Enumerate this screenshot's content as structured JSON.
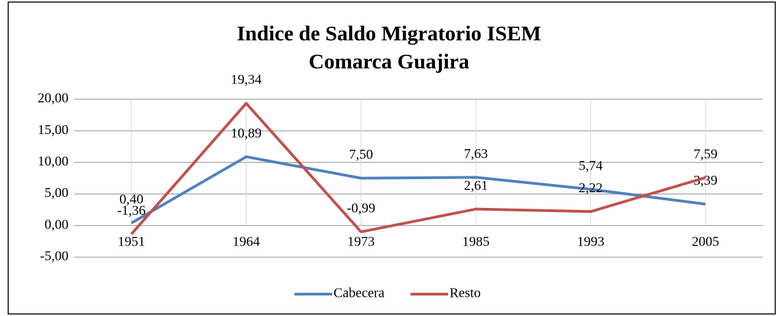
{
  "chart_data": {
    "type": "line",
    "title": [
      "Indice de Saldo Migratorio ISEM",
      "Comarca Guajira"
    ],
    "categories": [
      "1951",
      "1964",
      "1973",
      "1985",
      "1993",
      "2005"
    ],
    "series": [
      {
        "name": "Cabecera",
        "color": "#4f81bd",
        "values": [
          0.4,
          10.89,
          7.5,
          7.63,
          5.74,
          3.39
        ],
        "value_labels": [
          "0,40",
          "10,89",
          "7,50",
          "7,63",
          "5,74",
          "3,39"
        ]
      },
      {
        "name": "Resto",
        "color": "#c0504d",
        "values": [
          -1.36,
          19.34,
          -0.99,
          2.61,
          2.22,
          7.59
        ],
        "value_labels": [
          "-1,36",
          "19,34",
          "-0,99",
          "2,61",
          "2,22",
          "7,59"
        ]
      }
    ],
    "ylim": [
      -5,
      20
    ],
    "yticks": [
      {
        "value": -5,
        "label": "-5,00"
      },
      {
        "value": 0,
        "label": "0,00"
      },
      {
        "value": 5,
        "label": "5,00"
      },
      {
        "value": 10,
        "label": "10,00"
      },
      {
        "value": 15,
        "label": "15,00"
      },
      {
        "value": 20,
        "label": "20,00"
      }
    ],
    "grid": true,
    "legend": "bottom"
  }
}
